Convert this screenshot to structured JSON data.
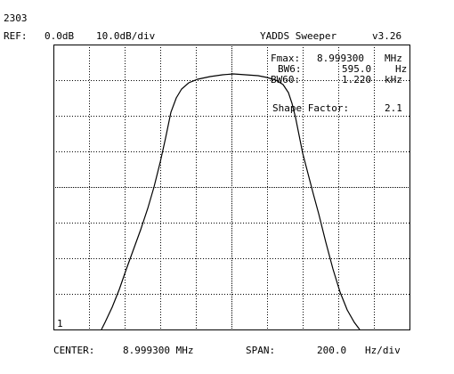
{
  "header": {
    "id_label": "2303",
    "ref_label": "REF:",
    "ref_value": "0.0dB",
    "scale": "10.0dB/div",
    "app_title": "YADDS Sweeper",
    "version": "v3.26"
  },
  "readout": {
    "fmax_label": "Fmax:",
    "fmax_value": "8.999300",
    "fmax_unit": "MHz",
    "bw6_label": "BW6:",
    "bw6_value": "595.0",
    "bw6_unit": "Hz",
    "bw60_label": "BW60:",
    "bw60_value": "1.220",
    "bw60_unit": "kHz",
    "shape_factor_label": "Shape Factor:",
    "shape_factor_value": "2.1"
  },
  "marker": {
    "number": "1"
  },
  "footer": {
    "center_label": "CENTER:",
    "center_value": "8.999300 MHz",
    "span_label": "SPAN:",
    "span_value": "200.0",
    "span_unit": "Hz/div"
  },
  "colors": {
    "background": "#ffffff",
    "trace": "#000000",
    "grid": "#000000"
  }
}
